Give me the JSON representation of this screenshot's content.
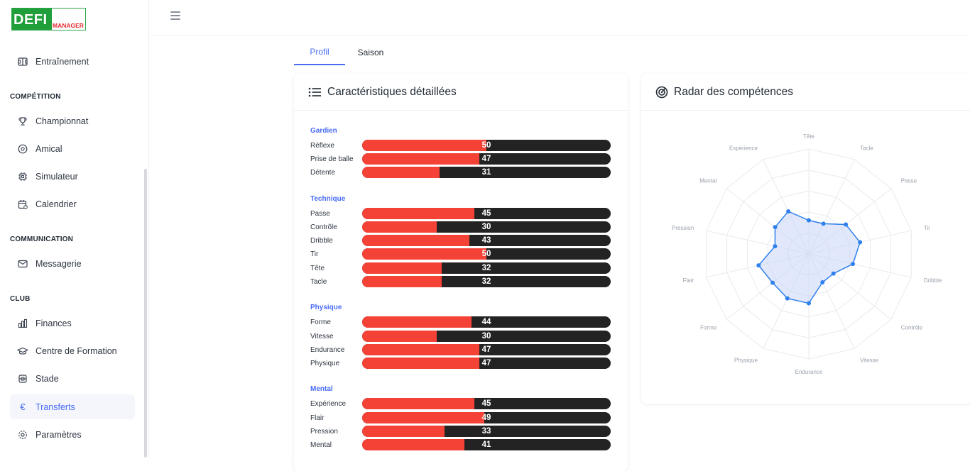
{
  "app": {
    "logo_main": "DEFI",
    "logo_sub": "MANAGER"
  },
  "sidebar": {
    "top_item": {
      "label": "Entraînement",
      "icon": "football-field-icon"
    },
    "sections": [
      {
        "title": "COMPÉTITION",
        "items": [
          {
            "label": "Championnat",
            "icon": "trophy-icon"
          },
          {
            "label": "Amical",
            "icon": "soccer-ball-icon"
          },
          {
            "label": "Simulateur",
            "icon": "cpu-icon"
          },
          {
            "label": "Calendrier",
            "icon": "calendar-icon"
          }
        ]
      },
      {
        "title": "COMMUNICATION",
        "items": [
          {
            "label": "Messagerie",
            "icon": "mail-icon"
          }
        ]
      },
      {
        "title": "CLUB",
        "items": [
          {
            "label": "Finances",
            "icon": "bar-chart-icon"
          },
          {
            "label": "Centre de Formation",
            "icon": "graduation-cap-icon"
          },
          {
            "label": "Stade",
            "icon": "stadium-icon"
          },
          {
            "label": "Transferts",
            "icon": "euro-icon",
            "active": true
          },
          {
            "label": "Paramètres",
            "icon": "gear-icon"
          }
        ]
      }
    ]
  },
  "tabs": [
    {
      "label": "Profil",
      "active": true
    },
    {
      "label": "Saison",
      "active": false
    }
  ],
  "details_card": {
    "title": "Caractéristiques détaillées",
    "groups": [
      {
        "title": "Gardien",
        "stats": [
          {
            "label": "Réflexe",
            "value": 50
          },
          {
            "label": "Prise de balle",
            "value": 47
          },
          {
            "label": "Détente",
            "value": 31
          }
        ]
      },
      {
        "title": "Technique",
        "stats": [
          {
            "label": "Passe",
            "value": 45
          },
          {
            "label": "Contrôle",
            "value": 30
          },
          {
            "label": "Dribble",
            "value": 43
          },
          {
            "label": "Tir",
            "value": 50
          },
          {
            "label": "Tête",
            "value": 32
          },
          {
            "label": "Tacle",
            "value": 32
          }
        ]
      },
      {
        "title": "Physique",
        "stats": [
          {
            "label": "Forme",
            "value": 44
          },
          {
            "label": "Vitesse",
            "value": 30
          },
          {
            "label": "Endurance",
            "value": 47
          },
          {
            "label": "Physique",
            "value": 47
          }
        ]
      },
      {
        "title": "Mental",
        "stats": [
          {
            "label": "Expérience",
            "value": 45
          },
          {
            "label": "Flair",
            "value": 49
          },
          {
            "label": "Pression",
            "value": 33
          },
          {
            "label": "Mental",
            "value": 41
          }
        ]
      }
    ],
    "max_value": 100
  },
  "radar_card": {
    "title": "Radar des compétences"
  },
  "chart_data": {
    "type": "radar",
    "categories": [
      "Tête",
      "Tacle",
      "Passe",
      "Tir",
      "Dribble",
      "Contrôle",
      "Vitesse",
      "Endurance",
      "Physique",
      "Forme",
      "Flair",
      "Pression",
      "Mental",
      "Expérience"
    ],
    "values": [
      32,
      32,
      45,
      50,
      43,
      30,
      30,
      47,
      47,
      44,
      49,
      33,
      41,
      45
    ],
    "range": [
      0,
      100
    ],
    "rings": 5,
    "colors": {
      "stroke": "#2f80ed",
      "fill": "#c9d5f7"
    }
  },
  "colors": {
    "accent": "#4a6cf7",
    "bar_fill": "#f44336",
    "bar_track": "#232323"
  }
}
